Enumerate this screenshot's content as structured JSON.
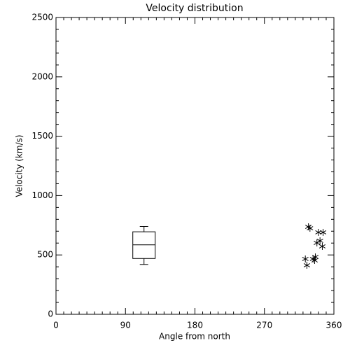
{
  "chart_data": {
    "type": "boxscatter",
    "title": "Velocity distribution",
    "x_label": "Angle from north",
    "y_label": "Velocity (km/s)",
    "xlim": [
      0,
      360
    ],
    "xticks": [
      0,
      90,
      180,
      270,
      360
    ],
    "xminorticks": [
      10,
      20,
      30,
      40,
      50,
      60,
      70,
      80,
      100,
      110,
      120,
      130,
      140,
      150,
      160,
      170,
      190,
      200,
      210,
      220,
      230,
      240,
      250,
      260,
      280,
      290,
      300,
      310,
      320,
      330,
      340,
      350
    ],
    "ylim": [
      0,
      2500
    ],
    "yticks": [
      0,
      500,
      1000,
      1500,
      2000,
      2500
    ],
    "yminorticks": [
      100,
      200,
      300,
      400,
      600,
      700,
      800,
      900,
      1100,
      1200,
      1300,
      1400,
      1600,
      1700,
      1800,
      1900,
      2100,
      2200,
      2300,
      2400
    ],
    "color": "#000000",
    "box": {
      "position": 114,
      "whisker_low": 420,
      "q1": 470,
      "median": 585,
      "q3": 695,
      "whisker_high": 740
    },
    "points": {
      "x": [
        327,
        329,
        340,
        346,
        338,
        342,
        345,
        323,
        325,
        333,
        336,
        335
      ],
      "y": [
        737,
        725,
        690,
        690,
        601,
        619,
        572,
        466,
        413,
        466,
        483,
        454
      ]
    }
  }
}
